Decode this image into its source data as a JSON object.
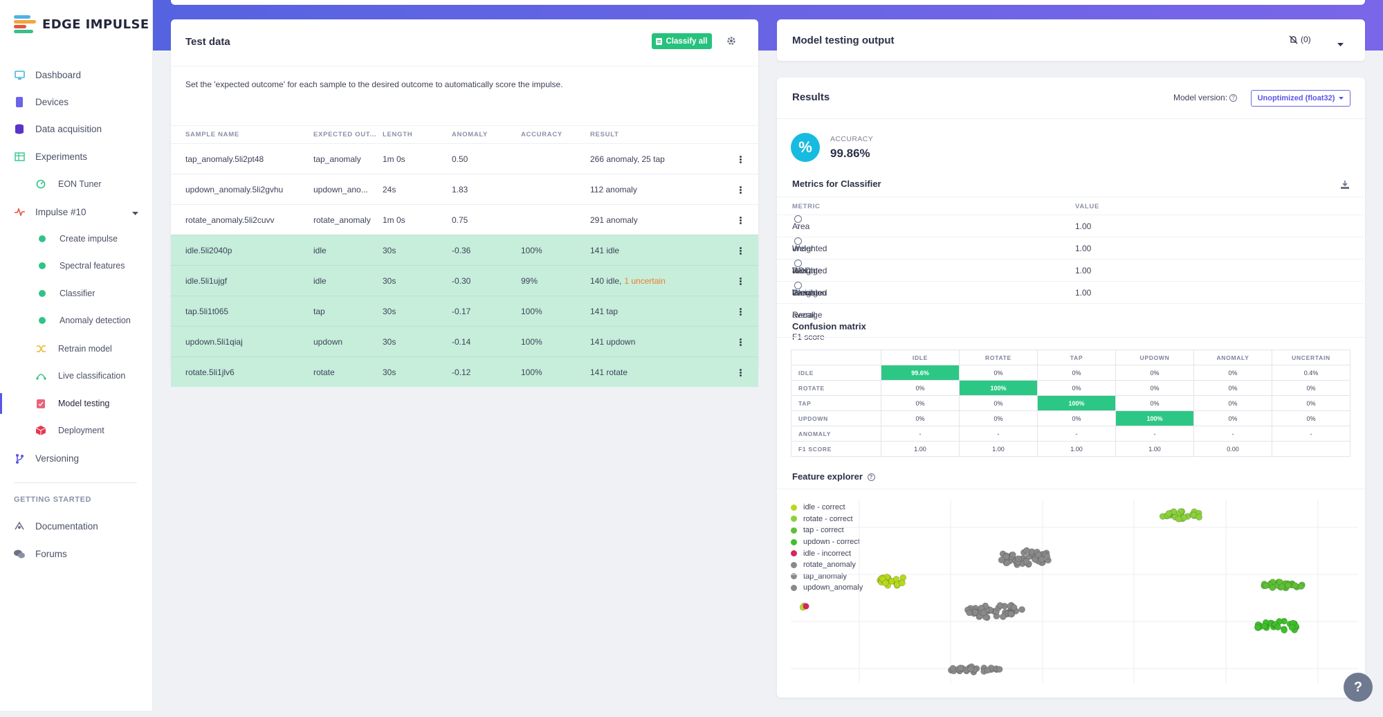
{
  "app": {
    "logo_text": "EDGE IMPULSE"
  },
  "sidebar": {
    "items": [
      {
        "label": "Dashboard"
      },
      {
        "label": "Devices"
      },
      {
        "label": "Data acquisition"
      },
      {
        "label": "Experiments"
      },
      {
        "label": "EON Tuner"
      },
      {
        "label": "Impulse #10"
      },
      {
        "label": "Create impulse"
      },
      {
        "label": "Spectral features"
      },
      {
        "label": "Classifier"
      },
      {
        "label": "Anomaly detection"
      },
      {
        "label": "Retrain model"
      },
      {
        "label": "Live classification"
      },
      {
        "label": "Model testing"
      },
      {
        "label": "Deployment"
      },
      {
        "label": "Versioning"
      }
    ],
    "getting_started_title": "GETTING STARTED",
    "getting_started": [
      {
        "label": "Documentation"
      },
      {
        "label": "Forums"
      }
    ]
  },
  "test_data": {
    "title": "Test data",
    "classify_all_label": "Classify all",
    "description": "Set the 'expected outcome' for each sample to the desired outcome to automatically score the impulse.",
    "columns": [
      "SAMPLE NAME",
      "EXPECTED OUT...",
      "LENGTH",
      "ANOMALY",
      "ACCURACY",
      "RESULT"
    ],
    "rows": [
      {
        "name": "tap_anomaly.5li2pt48",
        "expected": "tap_anomaly",
        "length": "1m 0s",
        "anomaly": "0.50",
        "accuracy": "",
        "result": "266 anomaly, 25 tap",
        "result_extra": "",
        "correct": false
      },
      {
        "name": "updown_anomaly.5li2gvhu",
        "expected": "updown_ano...",
        "length": "24s",
        "anomaly": "1.83",
        "accuracy": "",
        "result": "112 anomaly",
        "result_extra": "",
        "correct": false
      },
      {
        "name": "rotate_anomaly.5li2cuvv",
        "expected": "rotate_anomaly",
        "length": "1m 0s",
        "anomaly": "0.75",
        "accuracy": "",
        "result": "291 anomaly",
        "result_extra": "",
        "correct": false
      },
      {
        "name": "idle.5li2040p",
        "expected": "idle",
        "length": "30s",
        "anomaly": "-0.36",
        "accuracy": "100%",
        "result": "141 idle",
        "result_extra": "",
        "correct": true
      },
      {
        "name": "idle.5li1ujgf",
        "expected": "idle",
        "length": "30s",
        "anomaly": "-0.30",
        "accuracy": "99%",
        "result": "140 idle,",
        "result_extra": "1 uncertain",
        "correct": true
      },
      {
        "name": "tap.5li1t065",
        "expected": "tap",
        "length": "30s",
        "anomaly": "-0.17",
        "accuracy": "100%",
        "result": "141 tap",
        "result_extra": "",
        "correct": true
      },
      {
        "name": "updown.5li1qiaj",
        "expected": "updown",
        "length": "30s",
        "anomaly": "-0.14",
        "accuracy": "100%",
        "result": "141 updown",
        "result_extra": "",
        "correct": true
      },
      {
        "name": "rotate.5li1jlv6",
        "expected": "rotate",
        "length": "30s",
        "anomaly": "-0.12",
        "accuracy": "100%",
        "result": "141 rotate",
        "result_extra": "",
        "correct": true
      }
    ]
  },
  "output": {
    "title": "Model testing output",
    "notifications": "(0)"
  },
  "results": {
    "title": "Results",
    "model_version_label": "Model version:",
    "model_version_value": "Unoptimized (float32)",
    "accuracy_label": "ACCURACY",
    "accuracy_value": "99.86%",
    "metrics_title": "Metrics for Classifier",
    "metrics_columns": [
      "METRIC",
      "VALUE"
    ],
    "metrics": [
      {
        "name": "Area under ROC Curve",
        "value": "1.00"
      },
      {
        "name": "Weighted average Precision",
        "value": "1.00"
      },
      {
        "name": "Weighted average Recall",
        "value": "1.00"
      },
      {
        "name": "Weighted average F1 score",
        "value": "1.00"
      }
    ],
    "confusion_title": "Confusion matrix",
    "confusion": {
      "columns": [
        "IDLE",
        "ROTATE",
        "TAP",
        "UPDOWN",
        "ANOMALY",
        "UNCERTAIN"
      ],
      "rows": [
        {
          "label": "IDLE",
          "cells": [
            "99.6%",
            "0%",
            "0%",
            "0%",
            "0%",
            "0.4%"
          ],
          "hi": 0
        },
        {
          "label": "ROTATE",
          "cells": [
            "0%",
            "100%",
            "0%",
            "0%",
            "0%",
            "0%"
          ],
          "hi": 1
        },
        {
          "label": "TAP",
          "cells": [
            "0%",
            "0%",
            "100%",
            "0%",
            "0%",
            "0%"
          ],
          "hi": 2
        },
        {
          "label": "UPDOWN",
          "cells": [
            "0%",
            "0%",
            "0%",
            "100%",
            "0%",
            "0%"
          ],
          "hi": 3
        },
        {
          "label": "ANOMALY",
          "cells": [
            "-",
            "-",
            "-",
            "-",
            "-",
            "-"
          ],
          "hi": -1
        },
        {
          "label": "F1 SCORE",
          "cells": [
            "1.00",
            "1.00",
            "1.00",
            "1.00",
            "0.00",
            ""
          ],
          "hi": -1
        }
      ]
    },
    "feature_title": "Feature explorer",
    "legend": [
      {
        "label": "idle - correct",
        "color": "#b6d91f"
      },
      {
        "label": "rotate - correct",
        "color": "#8bd13c"
      },
      {
        "label": "tap - correct",
        "color": "#5fbf36"
      },
      {
        "label": "updown - correct",
        "color": "#3fbf2a"
      },
      {
        "label": "idle - incorrect",
        "color": "#d6245f"
      },
      {
        "label": "rotate_anomaly",
        "color": "#8a8a8a"
      },
      {
        "label": "tap_anomaly",
        "color": "#8a8a8a"
      },
      {
        "label": "updown_anomaly",
        "color": "#8a8a8a"
      }
    ]
  },
  "colors": {
    "accent": "#5b55e6",
    "green": "#2dc785",
    "band": "#6a66e6"
  }
}
